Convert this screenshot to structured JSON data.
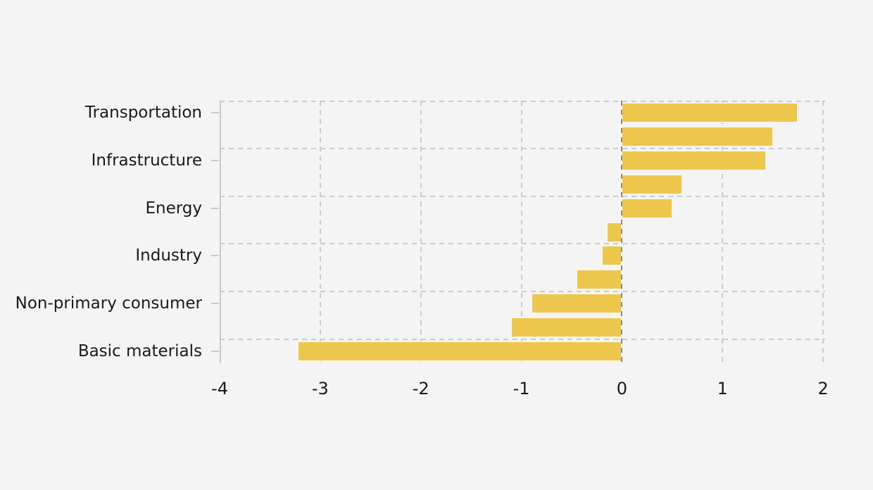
{
  "chart_data": {
    "type": "bar",
    "orientation": "horizontal",
    "title": "",
    "xlabel": "",
    "ylabel": "",
    "xlim": [
      -4,
      2.02
    ],
    "x_ticks": [
      -4,
      -3,
      -2,
      -1,
      0,
      1,
      2
    ],
    "grid": true,
    "legend": null,
    "zero_line": true,
    "group_separator_rows": [
      0,
      2,
      4,
      6,
      8,
      10
    ],
    "bars": [
      {
        "label": "Transportation",
        "value": 1.75
      },
      {
        "label": "",
        "value": 1.5
      },
      {
        "label": "Infrastructure",
        "value": 1.43
      },
      {
        "label": "",
        "value": 0.6
      },
      {
        "label": "Energy",
        "value": 0.5
      },
      {
        "label": "",
        "value": -0.15
      },
      {
        "label": "Industry",
        "value": -0.2
      },
      {
        "label": "",
        "value": -0.45
      },
      {
        "label": "Non-primary consumer",
        "value": -0.9
      },
      {
        "label": "",
        "value": -1.1
      },
      {
        "label": "Basic materials",
        "value": -3.22
      }
    ],
    "colors": {
      "bar": "#edc74d",
      "background": "#f4f4f5",
      "gridline": "#cbcbcb",
      "spine": "#c9c9c9",
      "zero_line": "#4b493c",
      "text": "#1a1a1a"
    }
  }
}
